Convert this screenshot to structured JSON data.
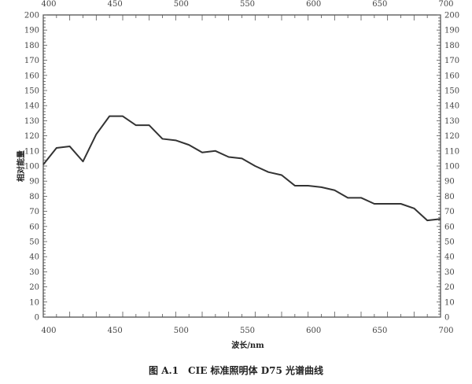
{
  "chart_data": {
    "type": "line",
    "title": "图 A.1　CIE 标准照明体 D75 光谱曲线",
    "xlabel": "波长/nm",
    "ylabel": "相对能量",
    "xlim": [
      400,
      700
    ],
    "ylim": [
      0,
      200
    ],
    "xticks": [
      400,
      450,
      500,
      550,
      600,
      650,
      700
    ],
    "yticks": [
      0,
      10,
      20,
      30,
      40,
      50,
      60,
      70,
      80,
      90,
      100,
      110,
      120,
      130,
      140,
      150,
      160,
      170,
      180,
      190,
      200
    ],
    "grid": false,
    "x": [
      400,
      410,
      420,
      430,
      440,
      450,
      460,
      470,
      480,
      490,
      500,
      510,
      520,
      530,
      540,
      550,
      560,
      570,
      580,
      590,
      600,
      610,
      620,
      630,
      640,
      650,
      660,
      670,
      680,
      690,
      700
    ],
    "y": [
      101,
      112,
      113,
      103,
      121,
      133,
      133,
      127,
      127,
      118,
      117,
      114,
      109,
      110,
      106,
      105,
      100,
      96,
      94,
      87,
      87,
      86,
      84,
      79,
      79,
      75,
      75,
      75,
      72,
      64,
      65
    ],
    "color": "#333333"
  }
}
